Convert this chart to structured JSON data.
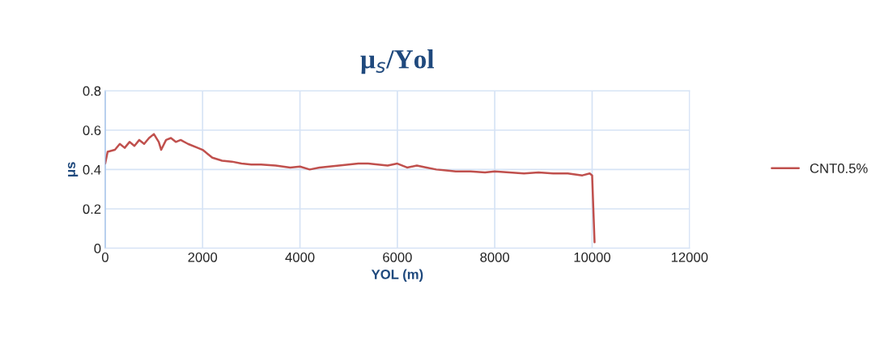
{
  "chart_data": {
    "type": "line",
    "title": "μ$_{s}$/Yol",
    "xlabel": "YOL (m)",
    "ylabel": "μs",
    "xlim": [
      0,
      12000
    ],
    "xticks": [
      0,
      2000,
      4000,
      6000,
      8000,
      10000,
      12000
    ],
    "ylim": [
      0,
      0.8
    ],
    "yticks": [
      0,
      0.2,
      0.4,
      0.6,
      0.8
    ],
    "grid": true,
    "legend": "right",
    "marker": "none",
    "line_style": "solid",
    "series": [
      {
        "name": "CNT0.5%",
        "color": "#c0504d",
        "x": [
          0,
          50,
          200,
          300,
          400,
          500,
          600,
          700,
          800,
          900,
          1000,
          1100,
          1150,
          1250,
          1350,
          1450,
          1550,
          1700,
          1900,
          2000,
          2200,
          2400,
          2600,
          2800,
          3000,
          3200,
          3500,
          3800,
          4000,
          4200,
          4400,
          4600,
          4800,
          5000,
          5200,
          5400,
          5600,
          5800,
          6000,
          6200,
          6400,
          6600,
          6800,
          7000,
          7200,
          7500,
          7800,
          8000,
          8300,
          8600,
          8900,
          9200,
          9500,
          9800,
          9950,
          10000,
          10050
        ],
        "values": [
          0.43,
          0.49,
          0.5,
          0.53,
          0.51,
          0.54,
          0.52,
          0.55,
          0.53,
          0.56,
          0.58,
          0.54,
          0.5,
          0.55,
          0.56,
          0.54,
          0.55,
          0.53,
          0.51,
          0.5,
          0.46,
          0.445,
          0.44,
          0.43,
          0.425,
          0.425,
          0.42,
          0.41,
          0.415,
          0.4,
          0.41,
          0.415,
          0.42,
          0.425,
          0.43,
          0.43,
          0.425,
          0.42,
          0.43,
          0.41,
          0.42,
          0.41,
          0.4,
          0.395,
          0.39,
          0.39,
          0.385,
          0.39,
          0.385,
          0.38,
          0.385,
          0.38,
          0.38,
          0.37,
          0.38,
          0.37,
          0.03
        ]
      }
    ]
  }
}
